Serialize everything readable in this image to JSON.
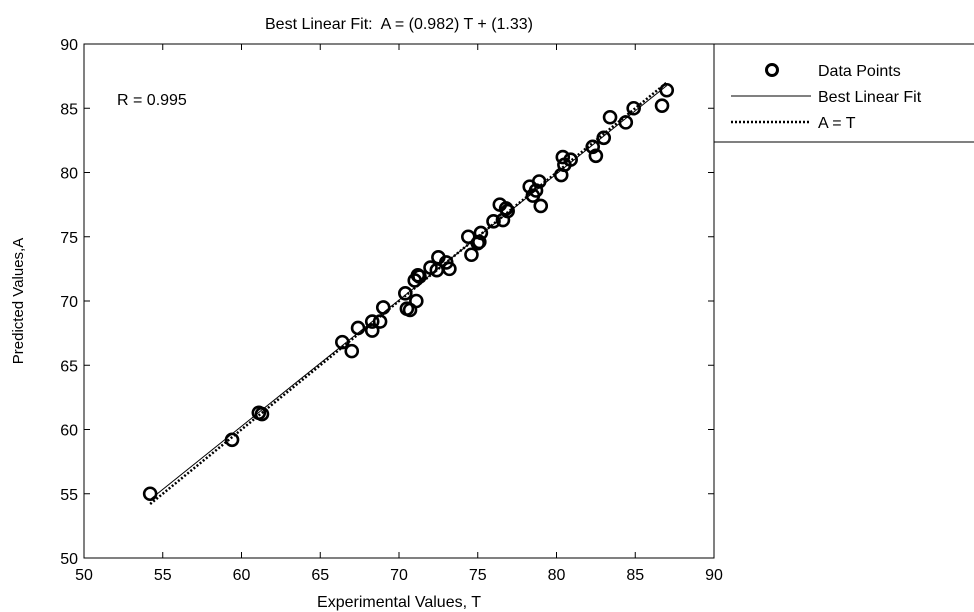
{
  "chart_data": {
    "type": "scatter",
    "title": "Best Linear Fit:  A = (0.982) T + (1.33)",
    "xlabel": "Experimental Values, T",
    "ylabel": "Predicted Values,A",
    "xlim": [
      50,
      90
    ],
    "ylim": [
      50,
      90
    ],
    "xticks": [
      "50",
      "55",
      "60",
      "65",
      "70",
      "75",
      "80",
      "85",
      "90"
    ],
    "yticks": [
      "50",
      "55",
      "60",
      "65",
      "70",
      "75",
      "80",
      "85",
      "90"
    ],
    "grid": false,
    "legend_position": "outside-right",
    "annotation": "R = 0.995",
    "fit": {
      "slope": 0.982,
      "intercept": 1.33
    },
    "x_range": [
      54.2,
      87.0
    ],
    "series": [
      {
        "name": "Data Points",
        "kind": "scatter",
        "marker": "open-circle",
        "points": [
          [
            54.2,
            55.0
          ],
          [
            59.4,
            59.2
          ],
          [
            61.1,
            61.3
          ],
          [
            61.3,
            61.2
          ],
          [
            66.4,
            66.8
          ],
          [
            67.0,
            66.1
          ],
          [
            67.4,
            67.9
          ],
          [
            68.3,
            68.4
          ],
          [
            68.3,
            67.7
          ],
          [
            68.8,
            68.4
          ],
          [
            69.0,
            69.5
          ],
          [
            70.4,
            70.6
          ],
          [
            70.5,
            69.4
          ],
          [
            70.7,
            69.3
          ],
          [
            71.0,
            71.6
          ],
          [
            71.1,
            70.0
          ],
          [
            71.2,
            72.0
          ],
          [
            71.3,
            71.9
          ],
          [
            72.0,
            72.6
          ],
          [
            72.4,
            72.4
          ],
          [
            72.5,
            73.4
          ],
          [
            73.0,
            73.0
          ],
          [
            73.2,
            72.5
          ],
          [
            74.4,
            75.0
          ],
          [
            74.6,
            73.6
          ],
          [
            75.0,
            74.5
          ],
          [
            75.1,
            74.6
          ],
          [
            75.2,
            75.3
          ],
          [
            76.0,
            76.2
          ],
          [
            76.4,
            77.5
          ],
          [
            76.6,
            76.3
          ],
          [
            76.8,
            77.2
          ],
          [
            76.9,
            77.0
          ],
          [
            78.3,
            78.9
          ],
          [
            78.5,
            78.2
          ],
          [
            78.7,
            78.6
          ],
          [
            78.9,
            79.3
          ],
          [
            79.0,
            77.4
          ],
          [
            80.3,
            79.8
          ],
          [
            80.4,
            81.2
          ],
          [
            80.5,
            80.6
          ],
          [
            80.9,
            81.0
          ],
          [
            82.3,
            82.0
          ],
          [
            82.5,
            81.3
          ],
          [
            83.0,
            82.7
          ],
          [
            83.4,
            84.3
          ],
          [
            84.4,
            83.9
          ],
          [
            84.9,
            85.0
          ],
          [
            86.7,
            85.2
          ],
          [
            87.0,
            86.4
          ]
        ]
      },
      {
        "name": "Best Linear Fit",
        "kind": "line",
        "style": "solid"
      },
      {
        "name": "A = T",
        "kind": "line",
        "style": "dotted"
      }
    ]
  }
}
